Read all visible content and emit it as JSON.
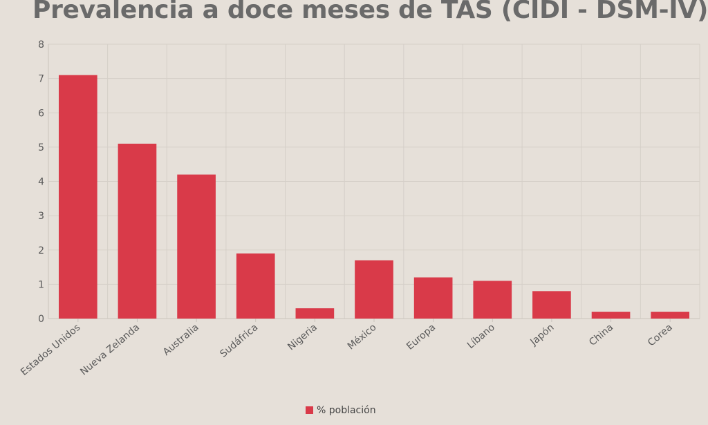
{
  "chart_data": {
    "type": "bar",
    "title": "Prevalencia a doce meses de TAS (CIDI - DSM-IV)",
    "categories": [
      "Estados Unidos",
      "Nueva Zelanda",
      "Australia",
      "Sudáfrica",
      "Nigeria",
      "México",
      "Europa",
      "Líbano",
      "Japón",
      "China",
      "Corea"
    ],
    "series": [
      {
        "name": "% población",
        "values": [
          7.1,
          5.1,
          4.2,
          1.9,
          0.3,
          1.7,
          1.2,
          1.1,
          0.8,
          0.2,
          0.2
        ]
      }
    ],
    "ylim": [
      0,
      8
    ],
    "yticks": [
      0,
      1,
      2,
      3,
      4,
      5,
      6,
      7,
      8
    ],
    "xlabel": "",
    "ylabel": "",
    "legend_position": "bottom-center",
    "grid": true,
    "colors": {
      "bar": "#d93a49",
      "grid": "#d5cfc8",
      "axis": "#c9c3bc",
      "title": "#6a6a6a",
      "background": "#e6e0d9"
    }
  }
}
